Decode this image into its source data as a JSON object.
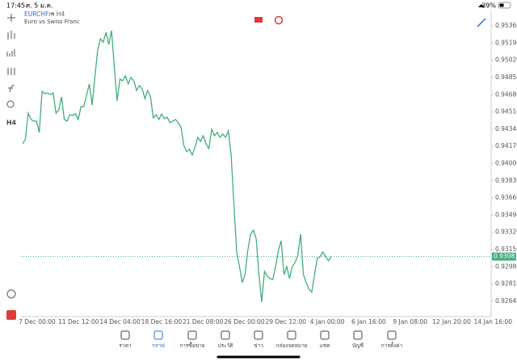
{
  "status_bar": {
    "time": "17:45",
    "date": "ศ. 5 ม.ค.",
    "battery": "39%"
  },
  "toolbar": {
    "timeframe": "H4"
  },
  "chart_data": {
    "type": "line",
    "symbol": "EURCHFm",
    "timeframe": "• H4",
    "description": "Euro vs Swiss Franc",
    "x_labels": [
      "7 Dec 00:00",
      "11 Dec 12:00",
      "14 Dec 04:00",
      "18 Dec 16:00",
      "21 Dec 08:00",
      "26 Dec 00:00",
      "29 Dec 12:00",
      "4 Jan 00:00",
      "6 Jan 16:00",
      "9 Jan 08:00",
      "12 Jan 20:00",
      "14 Jan 16:00"
    ],
    "series": [
      {
        "name": "EURCHFm",
        "color": "#43ad7c",
        "values": [
          0.94195,
          0.94243,
          0.94498,
          0.94435,
          0.94419,
          0.94419,
          0.94307,
          0.94714,
          0.9469,
          0.94698,
          0.94682,
          0.94698,
          0.94498,
          0.9453,
          0.94658,
          0.94435,
          0.94419,
          0.94483,
          0.94475,
          0.94491,
          0.94435,
          0.94562,
          0.94562,
          0.94674,
          0.94786,
          0.94578,
          0.94857,
          0.95121,
          0.95232,
          0.952,
          0.95296,
          0.95177,
          0.95312,
          0.94945,
          0.94618,
          0.94834,
          0.94818,
          0.94865,
          0.94786,
          0.9485,
          0.94818,
          0.94722,
          0.9477,
          0.94738,
          0.94642,
          0.94722,
          0.94658,
          0.94451,
          0.94483,
          0.94435,
          0.94491,
          0.94443,
          0.94459,
          0.94403,
          0.94419,
          0.94435,
          0.94403,
          0.94355,
          0.94179,
          0.94116,
          0.9414,
          0.94084,
          0.94163,
          0.94259,
          0.94219,
          0.94275,
          0.94195,
          0.94148,
          0.94339,
          0.94275,
          0.94307,
          0.94259,
          0.94291,
          0.94259,
          0.94323,
          0.94084,
          0.93605,
          0.93126,
          0.92983,
          0.92823,
          0.92903,
          0.93142,
          0.93302,
          0.93342,
          0.93262,
          0.92903,
          0.92632,
          0.92935,
          0.92887,
          0.92863,
          0.92855,
          0.92983,
          0.93142,
          0.93238,
          0.92903,
          0.92983,
          0.92863,
          0.92983,
          0.93023,
          0.93095,
          0.93302,
          0.92903,
          0.92823,
          0.9276,
          0.92728,
          0.92903,
          0.93063,
          0.93079,
          0.93126,
          0.93079,
          0.93039,
          0.93081
        ]
      }
    ],
    "current_price": 0.93081,
    "current_price_color": "#43ad7c",
    "ylim": [
      0.92488,
      0.95504
    ],
    "yticks": [
      {
        "value": 0.9536,
        "label": "0.95360"
      },
      {
        "value": 0.9519,
        "label": "0.95190"
      },
      {
        "value": 0.9502,
        "label": "0.95020"
      },
      {
        "value": 0.9485,
        "label": "0.94850"
      },
      {
        "value": 0.9468,
        "label": "0.94680"
      },
      {
        "value": 0.9451,
        "label": "0.94510"
      },
      {
        "value": 0.9434,
        "label": "0.94340"
      },
      {
        "value": 0.9417,
        "label": "0.94170"
      },
      {
        "value": 0.94,
        "label": "0.94000"
      },
      {
        "value": 0.9383,
        "label": "0.93830"
      },
      {
        "value": 0.9366,
        "label": "0.93660"
      },
      {
        "value": 0.9349,
        "label": "0.93490"
      },
      {
        "value": 0.9332,
        "label": "0.93320"
      },
      {
        "value": 0.9315,
        "label": "0.93150"
      },
      {
        "value": 0.9298,
        "label": "0.92980"
      },
      {
        "value": 0.9281,
        "label": "0.92810"
      },
      {
        "value": 0.9264,
        "label": "0.92640"
      }
    ]
  },
  "tabs": [
    {
      "label": "ราคา",
      "active": false
    },
    {
      "label": "กราฟ",
      "active": true
    },
    {
      "label": "การซื้อขาย",
      "active": false
    },
    {
      "label": "ประวัติ",
      "active": false
    },
    {
      "label": "ข่าว",
      "active": false
    },
    {
      "label": "กล่องจดหมาย",
      "active": false
    },
    {
      "label": "แชท",
      "active": false
    },
    {
      "label": "บัญชี",
      "active": false
    },
    {
      "label": "การตั้งค่า",
      "active": false
    }
  ]
}
